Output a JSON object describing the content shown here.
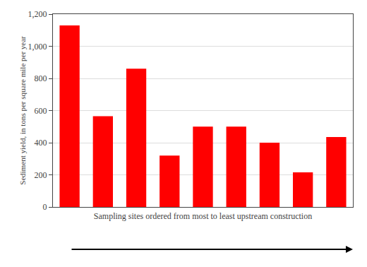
{
  "chart_data": {
    "type": "bar",
    "categories": [
      null,
      null,
      null,
      null,
      null,
      null,
      null,
      null,
      null
    ],
    "values": [
      1130,
      565,
      860,
      320,
      500,
      500,
      400,
      215,
      435
    ],
    "color": "#ff0000",
    "xlabel": "Sampling sites ordered from most to least upstream construction",
    "ylabel": "Sediment yield, in tons per square mile per year",
    "ylim": [
      0,
      1200
    ],
    "yticks": [
      0,
      200,
      400,
      600,
      800,
      {
        "value": 1000,
        "label": "1,000"
      },
      {
        "value": 1200,
        "label": "1,200"
      }
    ],
    "grid": true,
    "tick_labels": "y"
  }
}
